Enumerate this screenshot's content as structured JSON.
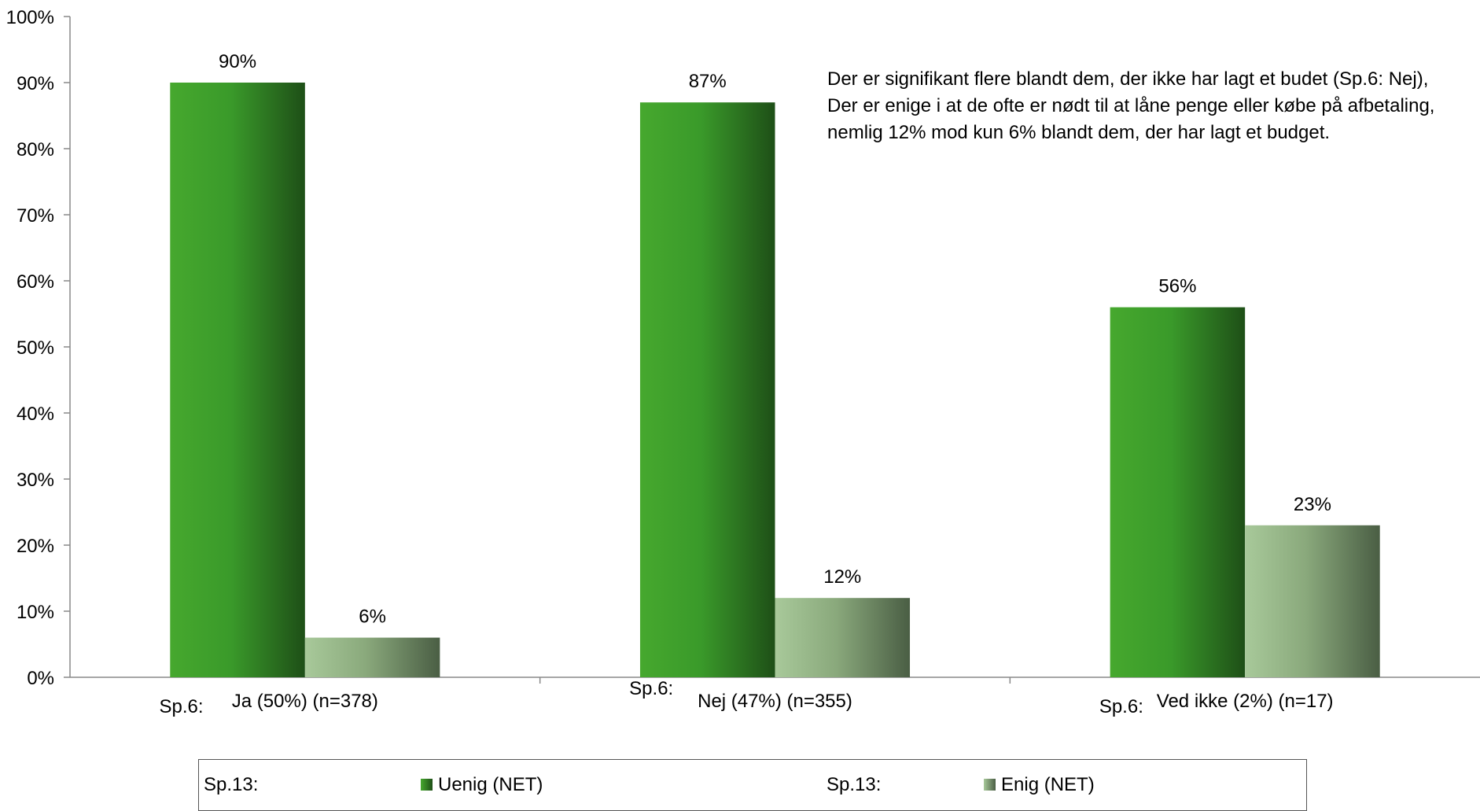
{
  "chart_data": {
    "type": "bar",
    "ylim": [
      0,
      100
    ],
    "yticks": [
      "0%",
      "10%",
      "20%",
      "30%",
      "40%",
      "50%",
      "60%",
      "70%",
      "80%",
      "90%",
      "100%"
    ],
    "categories": [
      {
        "prefix": "Sp.6:",
        "label": "Ja (50%) (n=378)"
      },
      {
        "prefix": "Sp.6:",
        "label": "Nej (47%) (n=355)"
      },
      {
        "prefix": "Sp.6:",
        "label": "Ved ikke (2%) (n=17)"
      }
    ],
    "series": [
      {
        "name": "Uenig (NET)",
        "values": [
          90,
          87,
          56
        ],
        "labels": [
          "90%",
          "87%",
          "56%"
        ],
        "color": "#3a9a2a"
      },
      {
        "name": "Enig (NET)",
        "values": [
          6,
          12,
          23
        ],
        "labels": [
          "6%",
          "12%",
          "23%"
        ],
        "color": "#8db07f"
      }
    ],
    "annotation": [
      "Der er signifikant flere blandt dem, der ikke har lagt et budet (Sp.6: Nej),",
      "Der er enige i at de ofte er nødt til at låne penge eller købe på afbetaling,",
      "nemlig 12% mod kun 6% blandt dem, der har lagt et budget."
    ],
    "legend": {
      "entries": [
        {
          "prefix": "Sp.13:",
          "name": "Uenig (NET)"
        },
        {
          "prefix": "Sp.13:",
          "name": "Enig (NET)"
        }
      ],
      "placement": "bottom"
    },
    "grid": false
  }
}
